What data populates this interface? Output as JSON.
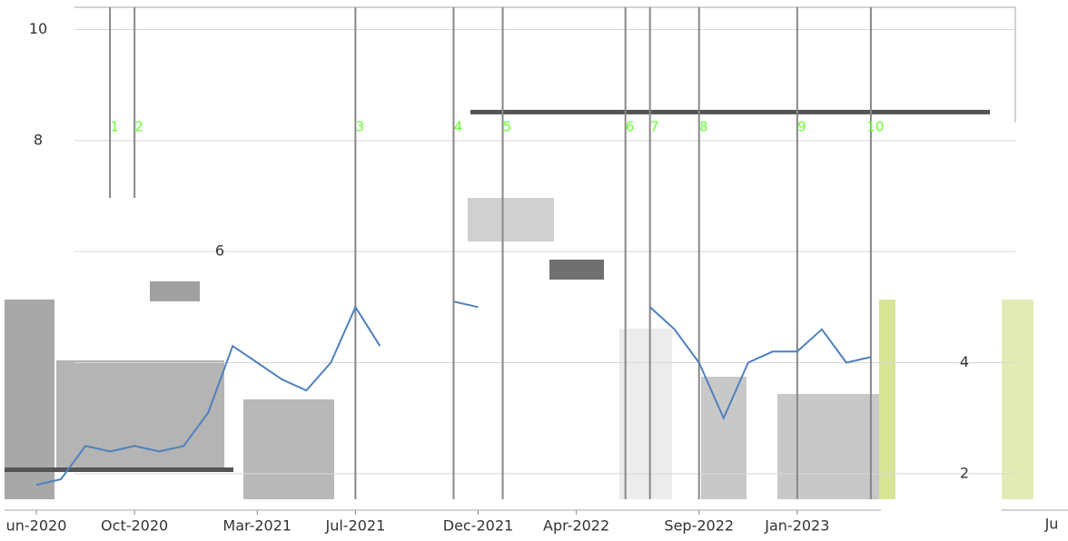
{
  "chart_data": {
    "type": "line",
    "x": [
      "2020-06",
      "2020-07",
      "2020-08",
      "2020-09",
      "2020-10",
      "2020-11",
      "2020-12",
      "2021-01",
      "2021-02",
      "2021-03",
      "2021-04",
      "2021-05",
      "2021-06",
      "2021-07",
      "2021-08",
      "2021-09",
      "2021-10",
      "2021-11",
      "2021-12",
      "2022-01",
      "2022-02",
      "2022-03",
      "2022-04",
      "2022-05",
      "2022-06",
      "2022-07",
      "2022-08",
      "2022-09",
      "2022-10",
      "2022-11",
      "2022-12",
      "2023-01",
      "2023-02",
      "2023-03",
      "2023-04"
    ],
    "series": [
      {
        "color": "#4f81bd",
        "values": [
          1.8,
          1.9,
          2.5,
          2.4,
          2.5,
          2.4,
          2.5,
          3.1,
          4.3,
          4.0,
          3.7,
          3.5,
          4.0,
          5.0,
          4.3,
          null,
          null,
          5.1,
          5.0,
          null,
          null,
          null,
          null,
          null,
          null,
          5.0,
          4.6,
          4.0,
          3.0,
          4.0,
          4.2,
          4.2,
          4.6,
          4.0,
          4.1
        ]
      }
    ],
    "xlim": [
      "2020-05",
      "2023-07"
    ],
    "xticks": [
      {
        "value": "2020-06",
        "label": "un-2020"
      },
      {
        "value": "2020-10",
        "label": "Oct-2020"
      },
      {
        "value": "2021-03",
        "label": "Mar-2021"
      },
      {
        "value": "2021-07",
        "label": "Jul-2021"
      },
      {
        "value": "2021-12",
        "label": "Dec-2021"
      },
      {
        "value": "2022-04",
        "label": "Apr-2022"
      },
      {
        "value": "2022-09",
        "label": "Sep-2022"
      },
      {
        "value": "2023-01",
        "label": "Jan-2023"
      }
    ],
    "ylim": [
      1.54,
      10.4
    ],
    "yticks": [
      2,
      4,
      6,
      8,
      10
    ],
    "grid": true,
    "events": [
      {
        "label": "1",
        "x": "2020-09"
      },
      {
        "label": "2",
        "x": "2020-10"
      },
      {
        "label": "3",
        "x": "2021-07"
      },
      {
        "label": "4",
        "x": "2021-11"
      },
      {
        "label": "5",
        "x": "2022-01"
      },
      {
        "label": "6",
        "x": "2022-06"
      },
      {
        "label": "7",
        "x": "2022-07"
      },
      {
        "label": "8",
        "x": "2022-09"
      },
      {
        "label": "9",
        "x": "2023-01"
      },
      {
        "label": "10",
        "x": "2023-04"
      }
    ],
    "annotations": [
      "Ju"
    ]
  }
}
